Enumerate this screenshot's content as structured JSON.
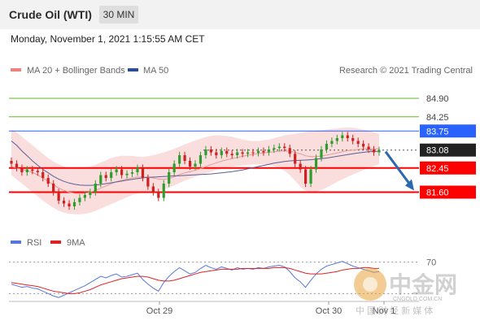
{
  "header": {
    "title": "Crude Oil (WTI)",
    "timeframe": "30 MIN"
  },
  "datetime": "Monday, November 1, 2021 1:15:55 AM CET",
  "legend": {
    "ma20": "MA 20 + Bollinger Bands",
    "ma50": "MA 50",
    "rsi": "RSI",
    "ma9": "9MA"
  },
  "copyright": "Research © 2021 Trading Central",
  "watermark": {
    "name": "中金网",
    "domain": "CNGOLD.COM.CN",
    "slogan": "中 国 财 经 新 媒 体"
  },
  "colors": {
    "resistance": "#2962ff",
    "support": "#ff0000",
    "current": "#222222",
    "target_line": "#66bb22",
    "band": "#f7c6c6",
    "ma50": "#444a88",
    "rsi": "#5577dd",
    "rsi_ma": "#dd2222",
    "candle_up": "#2d9e2d",
    "candle_down": "#d02020",
    "arrow": "#2a68b0"
  },
  "chart_data": {
    "type": "candlestick",
    "ylim": [
      80.9,
      85.3
    ],
    "xticks": [
      "Oct 29",
      "Oct 30",
      "Nov 1"
    ],
    "levels": [
      {
        "label": "84.90",
        "value": 84.9,
        "kind": "target"
      },
      {
        "label": "84.25",
        "value": 84.25,
        "kind": "target"
      },
      {
        "label": "83.75",
        "value": 83.75,
        "kind": "resistance"
      },
      {
        "label": "83.08",
        "value": 83.08,
        "kind": "current"
      },
      {
        "label": "82.45",
        "value": 82.45,
        "kind": "support"
      },
      {
        "label": "81.60",
        "value": 81.6,
        "kind": "support"
      }
    ],
    "close": [
      82.6,
      82.45,
      82.3,
      82.4,
      82.35,
      82.3,
      82.1,
      81.9,
      81.6,
      81.3,
      81.2,
      81.1,
      81.25,
      81.4,
      81.5,
      81.6,
      81.9,
      82.2,
      82.1,
      82.3,
      82.4,
      82.2,
      82.25,
      82.3,
      82.45,
      82.1,
      81.8,
      81.6,
      81.4,
      81.9,
      82.3,
      82.6,
      82.9,
      82.7,
      82.5,
      82.6,
      82.9,
      83.1,
      83.0,
      82.9,
      83.05,
      82.95,
      82.9,
      83.0,
      82.95,
      83.0,
      82.98,
      83.05,
      83.0,
      83.1,
      83.15,
      83.2,
      83.15,
      82.95,
      82.6,
      82.4,
      81.9,
      82.4,
      82.8,
      83.1,
      83.3,
      83.4,
      83.5,
      83.6,
      83.5,
      83.4,
      83.3,
      83.2,
      83.1,
      83.0,
      83.08
    ],
    "ma20": [
      82.5,
      82.45,
      82.4,
      82.35,
      82.3,
      82.2,
      82.1,
      81.98,
      81.86,
      81.75,
      81.66,
      81.6,
      81.56,
      81.55,
      81.56,
      81.6,
      81.66,
      81.74,
      81.82,
      81.9,
      81.97,
      82.02,
      82.06,
      82.1,
      82.13,
      82.14,
      82.13,
      82.1,
      82.06,
      82.05,
      82.08,
      82.14,
      82.22,
      82.28,
      82.32,
      82.37,
      82.43,
      82.5,
      82.57,
      82.63,
      82.69,
      82.74,
      82.78,
      82.82,
      82.86,
      82.9,
      82.93,
      82.96,
      82.98,
      83.0,
      83.02,
      83.04,
      83.05,
      83.04,
      83.0,
      82.95,
      82.88,
      82.85,
      82.85,
      82.87,
      82.9,
      82.94,
      82.98,
      83.02,
      83.06,
      83.08,
      83.1,
      83.12,
      83.13,
      83.13,
      83.12
    ],
    "bb_upper": [
      83.8,
      83.7,
      83.55,
      83.4,
      83.25,
      83.1,
      82.95,
      82.8,
      82.68,
      82.58,
      82.5,
      82.46,
      82.44,
      82.44,
      82.46,
      82.5,
      82.56,
      82.64,
      82.72,
      82.8,
      82.85,
      82.88,
      82.88,
      82.87,
      82.85,
      82.84,
      82.86,
      82.9,
      82.95,
      83.0,
      83.06,
      83.12,
      83.2,
      83.28,
      83.35,
      83.42,
      83.48,
      83.54,
      83.58,
      83.6,
      83.6,
      83.58,
      83.55,
      83.5,
      83.45,
      83.42,
      83.4,
      83.4,
      83.42,
      83.45,
      83.5,
      83.55,
      83.6,
      83.63,
      83.65,
      83.68,
      83.72,
      83.74,
      83.76,
      83.78,
      83.8,
      83.82,
      83.84,
      83.86,
      83.87,
      83.86,
      83.84,
      83.8,
      83.76,
      83.7,
      83.65
    ],
    "bb_lower": [
      82.2,
      82.05,
      81.9,
      81.75,
      81.6,
      81.45,
      81.3,
      81.17,
      81.05,
      80.95,
      80.88,
      80.84,
      80.82,
      80.82,
      80.84,
      80.88,
      80.94,
      81.02,
      81.1,
      81.18,
      81.26,
      81.34,
      81.42,
      81.5,
      81.55,
      81.58,
      81.6,
      81.62,
      81.66,
      81.7,
      81.76,
      81.84,
      81.92,
      82.0,
      82.08,
      82.14,
      82.2,
      82.26,
      82.32,
      82.38,
      82.42,
      82.46,
      82.5,
      82.52,
      82.54,
      82.56,
      82.57,
      82.58,
      82.58,
      82.56,
      82.52,
      82.45,
      82.35,
      82.2,
      82.0,
      81.8,
      81.65,
      81.6,
      81.62,
      81.68,
      81.76,
      81.86,
      81.96,
      82.05,
      82.14,
      82.22,
      82.3,
      82.38,
      82.45,
      82.52,
      82.58
    ],
    "ma50": [
      83.4,
      83.25,
      83.05,
      82.88,
      82.7,
      82.55,
      82.4,
      82.28,
      82.16,
      82.06,
      81.98,
      81.92,
      81.88,
      81.85,
      81.84,
      81.84,
      81.85,
      81.87,
      81.9,
      81.93,
      81.96,
      81.99,
      82.02,
      82.05,
      82.08,
      82.1,
      82.12,
      82.13,
      82.14,
      82.15,
      82.16,
      82.17,
      82.18,
      82.19,
      82.2,
      82.21,
      82.22,
      82.23,
      82.24,
      82.26,
      82.28,
      82.3,
      82.32,
      82.35,
      82.38,
      82.42,
      82.46,
      82.5,
      82.54,
      82.58,
      82.62,
      82.65,
      82.68,
      82.7,
      82.71,
      82.72,
      82.73,
      82.74,
      82.76,
      82.78,
      82.8,
      82.83,
      82.86,
      82.89,
      82.92,
      82.95,
      82.98,
      83.0,
      83.02,
      83.03,
      83.04
    ],
    "rsi": {
      "level_label": "70",
      "ylim": [
        20,
        80
      ],
      "rsi": [
        42,
        40,
        38,
        39,
        37,
        36,
        33,
        30,
        27,
        25,
        28,
        31,
        34,
        37,
        40,
        44,
        48,
        52,
        50,
        53,
        55,
        51,
        52,
        54,
        56,
        48,
        42,
        37,
        33,
        44,
        52,
        58,
        63,
        59,
        55,
        57,
        62,
        66,
        63,
        61,
        64,
        62,
        60,
        63,
        61,
        62,
        61,
        63,
        62,
        64,
        65,
        66,
        64,
        58,
        50,
        45,
        38,
        47,
        55,
        61,
        65,
        67,
        69,
        71,
        68,
        65,
        63,
        61,
        59,
        57,
        58
      ],
      "ma9": [
        44,
        43,
        42,
        41,
        40,
        39,
        37,
        35,
        33,
        32,
        31,
        30,
        30,
        31,
        33,
        35,
        38,
        41,
        43,
        45,
        47,
        49,
        50,
        51,
        52,
        52,
        51,
        49,
        47,
        46,
        46,
        47,
        49,
        51,
        53,
        55,
        57,
        58,
        59,
        60,
        61,
        61,
        61,
        61,
        62,
        62,
        62,
        62,
        62,
        62,
        63,
        63,
        63,
        62,
        60,
        58,
        56,
        55,
        55,
        55,
        56,
        57,
        58,
        60,
        61,
        62,
        62,
        63,
        63,
        62,
        62
      ]
    }
  }
}
